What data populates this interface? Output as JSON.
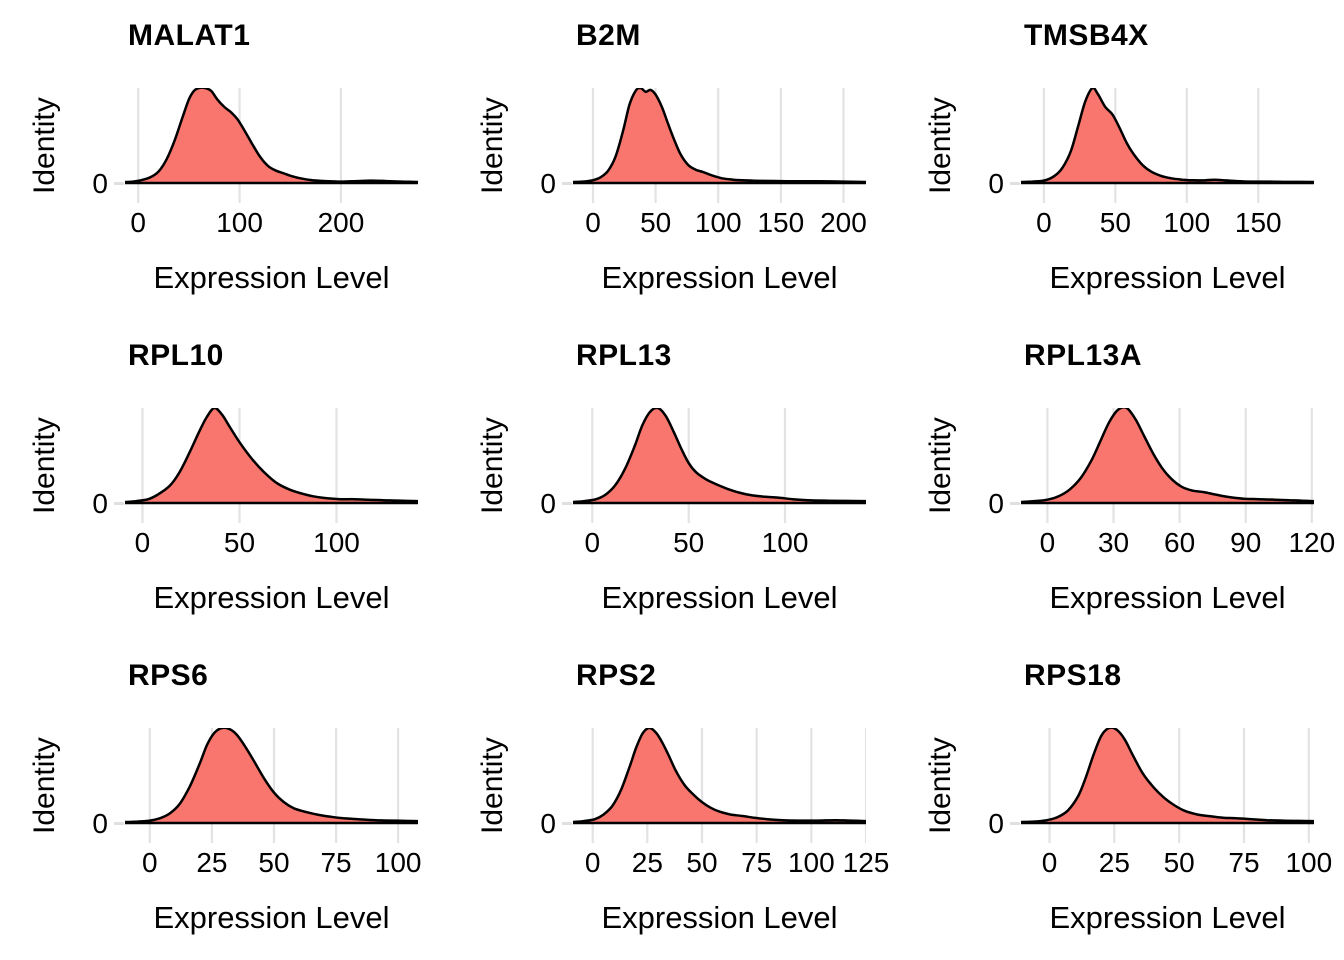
{
  "figure": {
    "ylab": "Identity",
    "xlab": "Expression Level",
    "y_zero_label": "0",
    "colors": {
      "fill": "#F8766D",
      "stroke": "#000000",
      "gridline": "#E3E3E3",
      "background": "#FFFFFF",
      "text": "#000000"
    }
  },
  "chart_data": [
    {
      "type": "area",
      "title": "MALAT1",
      "xlabel": "Expression Level",
      "ylabel": "Identity",
      "y_ticks": [
        0
      ],
      "xlim": [
        -13,
        276
      ],
      "x_ticks": [
        0,
        100,
        200
      ],
      "grid": true,
      "density": {
        "x": [
          -13,
          -5,
          3,
          12,
          20,
          28,
          36,
          44,
          50,
          55,
          60,
          66,
          72,
          78,
          85,
          92,
          98,
          105,
          112,
          120,
          128,
          136,
          144,
          152,
          162,
          172,
          185,
          200,
          215,
          230,
          245,
          260,
          276
        ],
        "y": [
          0.01,
          0.015,
          0.03,
          0.06,
          0.12,
          0.25,
          0.45,
          0.7,
          0.88,
          0.97,
          1.0,
          1.0,
          0.97,
          0.88,
          0.8,
          0.74,
          0.67,
          0.55,
          0.42,
          0.28,
          0.18,
          0.13,
          0.1,
          0.07,
          0.045,
          0.03,
          0.02,
          0.015,
          0.02,
          0.025,
          0.02,
          0.015,
          0.01
        ]
      }
    },
    {
      "type": "area",
      "title": "B2M",
      "xlabel": "Expression Level",
      "ylabel": "Identity",
      "y_ticks": [
        0
      ],
      "xlim": [
        -16,
        218
      ],
      "x_ticks": [
        0,
        50,
        100,
        150,
        200
      ],
      "grid": true,
      "density": {
        "x": [
          -16,
          -8,
          0,
          6,
          12,
          18,
          24,
          29,
          34,
          38,
          42,
          46,
          50,
          55,
          60,
          65,
          70,
          76,
          82,
          88,
          95,
          103,
          112,
          122,
          135,
          150,
          165,
          180,
          200,
          218
        ],
        "y": [
          0.01,
          0.015,
          0.03,
          0.06,
          0.13,
          0.28,
          0.55,
          0.82,
          0.97,
          1.0,
          0.96,
          0.98,
          0.93,
          0.8,
          0.62,
          0.45,
          0.3,
          0.19,
          0.14,
          0.115,
          0.08,
          0.05,
          0.035,
          0.027,
          0.022,
          0.02,
          0.018,
          0.018,
          0.015,
          0.01
        ]
      }
    },
    {
      "type": "area",
      "title": "TMSB4X",
      "xlabel": "Expression Level",
      "ylabel": "Identity",
      "y_ticks": [
        0
      ],
      "xlim": [
        -16,
        189
      ],
      "x_ticks": [
        0,
        50,
        100,
        150
      ],
      "grid": true,
      "density": {
        "x": [
          -16,
          -8,
          0,
          7,
          13,
          19,
          24,
          29,
          34,
          38,
          43,
          48,
          53,
          58,
          63,
          69,
          75,
          82,
          89,
          97,
          105,
          113,
          120,
          127,
          135,
          145,
          157,
          170,
          189
        ],
        "y": [
          0.01,
          0.015,
          0.025,
          0.07,
          0.16,
          0.34,
          0.6,
          0.86,
          1.0,
          0.93,
          0.8,
          0.72,
          0.58,
          0.42,
          0.3,
          0.19,
          0.12,
          0.075,
          0.05,
          0.035,
          0.028,
          0.03,
          0.035,
          0.027,
          0.02,
          0.015,
          0.015,
          0.012,
          0.01
        ]
      }
    },
    {
      "type": "area",
      "title": "RPL10",
      "xlabel": "Expression Level",
      "ylabel": "Identity",
      "y_ticks": [
        0
      ],
      "xlim": [
        -9,
        142
      ],
      "x_ticks": [
        0,
        50,
        100
      ],
      "grid": true,
      "density": {
        "x": [
          -9,
          -3,
          3,
          8,
          14,
          19,
          24,
          29,
          33,
          37,
          41,
          45,
          50,
          55,
          60,
          65,
          70,
          76,
          82,
          88,
          95,
          102,
          109,
          116,
          124,
          132,
          142
        ],
        "y": [
          0.01,
          0.02,
          0.04,
          0.09,
          0.18,
          0.32,
          0.52,
          0.74,
          0.9,
          1.0,
          0.93,
          0.8,
          0.64,
          0.5,
          0.38,
          0.28,
          0.2,
          0.14,
          0.1,
          0.07,
          0.05,
          0.04,
          0.04,
          0.035,
          0.03,
          0.025,
          0.02
        ]
      }
    },
    {
      "type": "area",
      "title": "RPL13",
      "xlabel": "Expression Level",
      "ylabel": "Identity",
      "y_ticks": [
        0
      ],
      "xlim": [
        -10,
        142
      ],
      "x_ticks": [
        0,
        50,
        100
      ],
      "grid": true,
      "density": {
        "x": [
          -10,
          -4,
          2,
          7,
          12,
          17,
          22,
          26,
          30,
          34,
          38,
          42,
          46,
          50,
          54,
          59,
          64,
          70,
          76,
          83,
          90,
          97,
          104,
          112,
          121,
          131,
          142
        ],
        "y": [
          0.01,
          0.02,
          0.04,
          0.09,
          0.19,
          0.36,
          0.6,
          0.82,
          0.96,
          1.0,
          0.92,
          0.76,
          0.58,
          0.42,
          0.32,
          0.25,
          0.2,
          0.15,
          0.11,
          0.08,
          0.065,
          0.055,
          0.04,
          0.03,
          0.025,
          0.022,
          0.02
        ]
      }
    },
    {
      "type": "area",
      "title": "RPL13A",
      "xlabel": "Expression Level",
      "ylabel": "Identity",
      "y_ticks": [
        0
      ],
      "xlim": [
        -12,
        121
      ],
      "x_ticks": [
        0,
        30,
        60,
        90,
        120
      ],
      "grid": true,
      "density": {
        "x": [
          -12,
          -6,
          0,
          5,
          10,
          15,
          20,
          24,
          28,
          32,
          36,
          40,
          44,
          48,
          52,
          56,
          61,
          66,
          71,
          77,
          83,
          89,
          96,
          103,
          110,
          115,
          121
        ],
        "y": [
          0.01,
          0.02,
          0.035,
          0.07,
          0.14,
          0.26,
          0.45,
          0.65,
          0.85,
          0.98,
          1.0,
          0.88,
          0.7,
          0.52,
          0.37,
          0.26,
          0.17,
          0.13,
          0.115,
          0.085,
          0.06,
          0.045,
          0.04,
          0.035,
          0.03,
          0.025,
          0.02
        ]
      }
    },
    {
      "type": "area",
      "title": "RPS6",
      "xlabel": "Expression Level",
      "ylabel": "Identity",
      "y_ticks": [
        0
      ],
      "xlim": [
        -10,
        108
      ],
      "x_ticks": [
        0,
        25,
        50,
        75,
        100
      ],
      "grid": true,
      "density": {
        "x": [
          -10,
          -5,
          0,
          4,
          8,
          12,
          16,
          20,
          23,
          26,
          29,
          32,
          35,
          38,
          42,
          46,
          50,
          54,
          58,
          63,
          68,
          73,
          78,
          84,
          91,
          99,
          108
        ],
        "y": [
          0.01,
          0.015,
          0.025,
          0.05,
          0.1,
          0.2,
          0.38,
          0.62,
          0.82,
          0.95,
          1.0,
          0.99,
          0.93,
          0.82,
          0.65,
          0.47,
          0.32,
          0.22,
          0.155,
          0.115,
          0.085,
          0.065,
          0.05,
          0.04,
          0.03,
          0.025,
          0.02
        ]
      }
    },
    {
      "type": "area",
      "title": "RPS2",
      "xlabel": "Expression Level",
      "ylabel": "Identity",
      "y_ticks": [
        0
      ],
      "xlim": [
        -9,
        125
      ],
      "x_ticks": [
        0,
        25,
        50,
        75,
        100,
        125
      ],
      "grid": true,
      "density": {
        "x": [
          -9,
          -4,
          1,
          5,
          9,
          13,
          17,
          20,
          23,
          26,
          29,
          32,
          35,
          38,
          42,
          46,
          50,
          54,
          58,
          63,
          68,
          74,
          80,
          87,
          95,
          103,
          111,
          118,
          125
        ],
        "y": [
          0.01,
          0.02,
          0.04,
          0.09,
          0.18,
          0.35,
          0.6,
          0.8,
          0.95,
          1.0,
          0.95,
          0.84,
          0.7,
          0.55,
          0.4,
          0.3,
          0.22,
          0.16,
          0.12,
          0.09,
          0.075,
          0.055,
          0.04,
          0.03,
          0.025,
          0.025,
          0.03,
          0.025,
          0.02
        ]
      }
    },
    {
      "type": "area",
      "title": "RPS18",
      "xlabel": "Expression Level",
      "ylabel": "Identity",
      "y_ticks": [
        0
      ],
      "xlim": [
        -11,
        102
      ],
      "x_ticks": [
        0,
        25,
        50,
        75,
        100
      ],
      "grid": true,
      "density": {
        "x": [
          -11,
          -6,
          -1,
          3,
          7,
          11,
          14,
          17,
          20,
          23,
          26,
          29,
          32,
          36,
          40,
          44,
          48,
          52,
          57,
          62,
          67,
          72,
          78,
          84,
          90,
          96,
          102
        ],
        "y": [
          0.01,
          0.015,
          0.03,
          0.06,
          0.13,
          0.28,
          0.48,
          0.72,
          0.92,
          1.0,
          0.98,
          0.88,
          0.72,
          0.52,
          0.38,
          0.27,
          0.19,
          0.13,
          0.09,
          0.07,
          0.055,
          0.05,
          0.04,
          0.03,
          0.025,
          0.022,
          0.02
        ]
      }
    }
  ]
}
